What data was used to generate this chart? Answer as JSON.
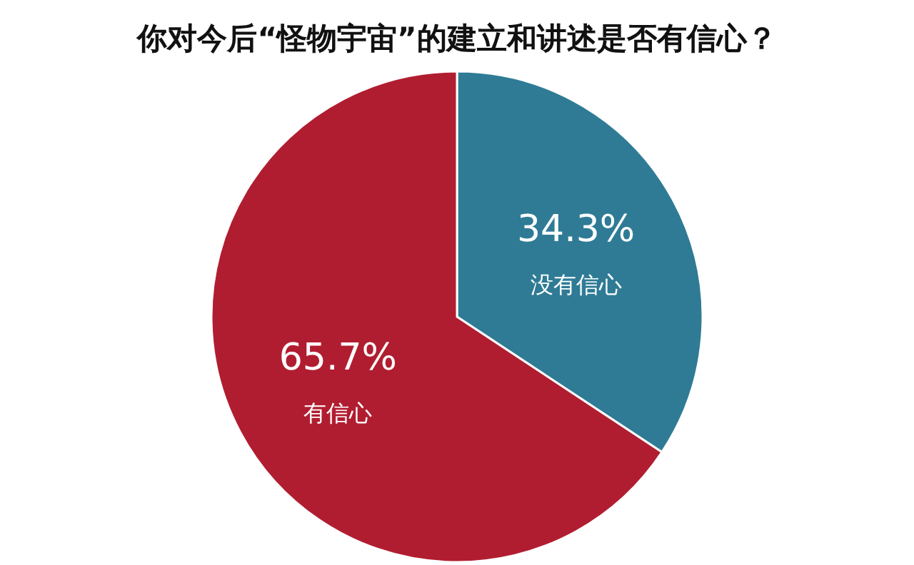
{
  "chart_data": {
    "type": "pie",
    "title": "你对今后“怪物宇宙”的建立和讲述是否有信心？",
    "categories": [
      "没有信心",
      "有信心"
    ],
    "values": [
      34.3,
      65.7
    ],
    "value_labels": [
      "34.3%",
      "65.7%"
    ],
    "colors": [
      "#2f7b95",
      "#b11d30"
    ],
    "legend": false
  }
}
